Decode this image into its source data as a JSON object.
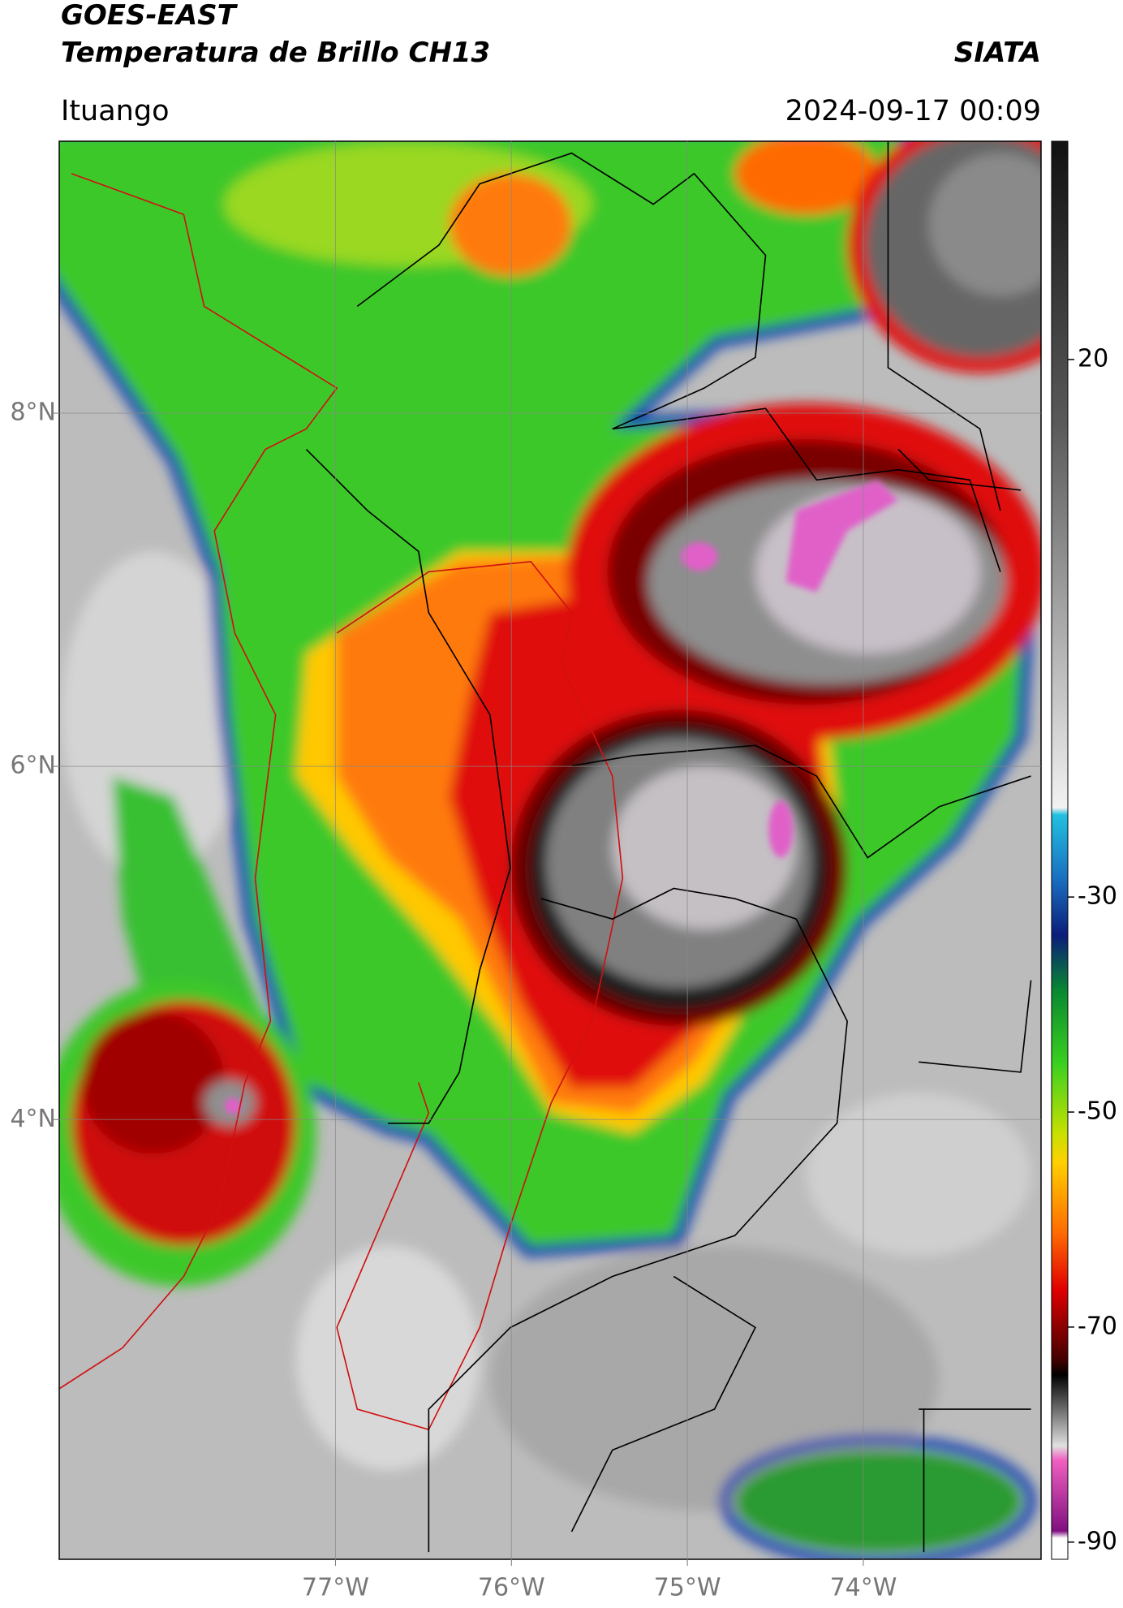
{
  "chart_data": {
    "type": "map",
    "title": "GOES-EAST",
    "subtitle": "Temperatura de Brillo CH13",
    "source": "SIATA",
    "location": "Ituango",
    "timestamp": "2024-09-17 00:09",
    "xlim": [
      -78.57,
      -72.99
    ],
    "ylim": [
      1.51,
      9.54
    ],
    "xticks": [
      {
        "value": -77,
        "label": "77°W"
      },
      {
        "value": -76,
        "label": "76°W"
      },
      {
        "value": -75,
        "label": "75°W"
      },
      {
        "value": -74,
        "label": "74°W"
      }
    ],
    "yticks": [
      {
        "value": 8,
        "label": "8°N"
      },
      {
        "value": 6,
        "label": "6°N"
      },
      {
        "value": 4,
        "label": "4°N"
      }
    ],
    "grid": true,
    "colorbar": {
      "lim": [
        -91.6,
        40.3
      ],
      "ticks": [
        20,
        -30,
        -50,
        -70,
        -90
      ]
    }
  }
}
